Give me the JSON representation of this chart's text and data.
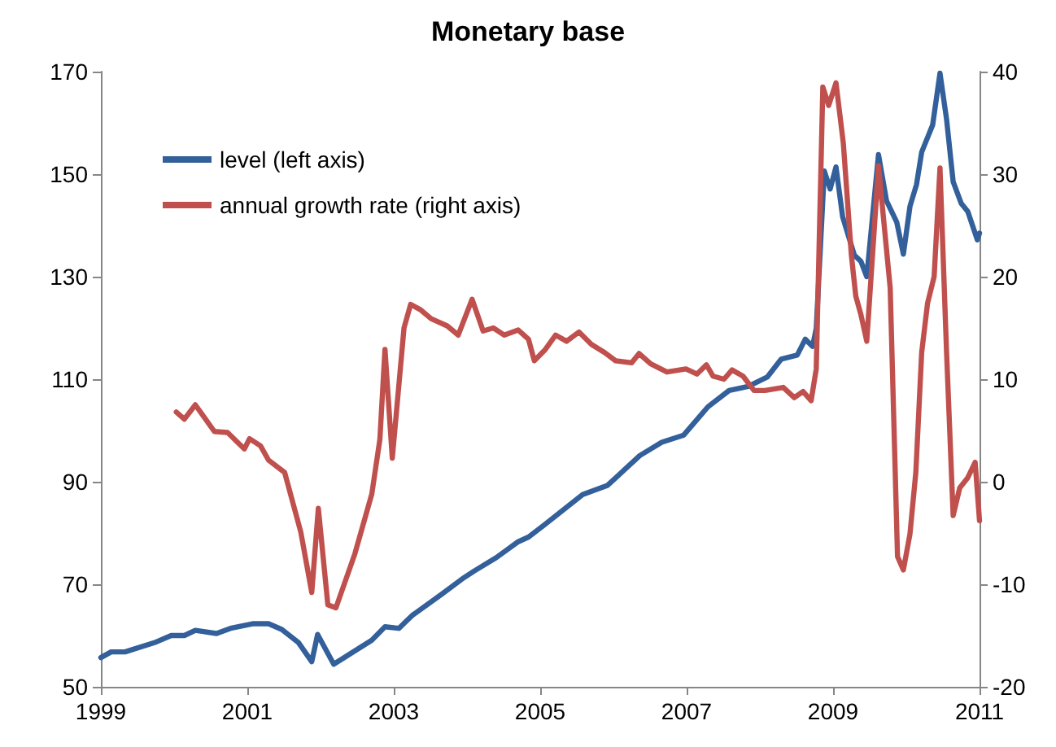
{
  "chart_data": {
    "type": "line",
    "title": "Monetary base",
    "xlim": [
      1999,
      2011
    ],
    "xticks": [
      1999,
      2001,
      2003,
      2005,
      2007,
      2009,
      2011
    ],
    "ylim": [
      50,
      170
    ],
    "yticks": [
      50,
      70,
      90,
      110,
      130,
      150,
      170
    ],
    "y2lim": [
      -20,
      40
    ],
    "y2ticks": [
      -20,
      -10,
      0,
      10,
      20,
      30,
      40
    ],
    "grid": false,
    "legend": "top left",
    "marker": "none",
    "line_style": "solid",
    "series": [
      {
        "name": "level (left axis)",
        "color": "#33609a",
        "x": [
          1999.0,
          1999.14,
          1999.33,
          1999.73,
          1999.96,
          2000.14,
          2000.29,
          2000.58,
          2000.77,
          2001.07,
          2001.29,
          2001.47,
          2001.7,
          2001.88,
          2001.96,
          2002.18,
          2002.4,
          2002.7,
          2002.88,
          2003.07,
          2003.25,
          2003.66,
          2003.96,
          2004.1,
          2004.4,
          2004.7,
          2004.84,
          2005.05,
          2005.58,
          2005.92,
          2006.36,
          2006.66,
          2006.96,
          2007.29,
          2007.58,
          2007.84,
          2008.1,
          2008.29,
          2008.51,
          2008.62,
          2008.72,
          2008.77,
          2008.88,
          2008.96,
          2009.04,
          2009.13,
          2009.29,
          2009.38,
          2009.46,
          2009.62,
          2009.73,
          2009.87,
          2009.96,
          2010.05,
          2010.14,
          2010.21,
          2010.36,
          2010.46,
          2010.55,
          2010.64,
          2010.75,
          2010.84,
          2010.97,
          2011.0
        ],
        "values": [
          55.7,
          56.8,
          56.8,
          58.6,
          60.0,
          60.0,
          61.0,
          60.4,
          61.4,
          62.3,
          62.3,
          61.2,
          58.6,
          54.9,
          60.2,
          54.4,
          56.4,
          59.1,
          61.7,
          61.4,
          63.9,
          68.1,
          71.3,
          72.6,
          75.2,
          78.3,
          79.2,
          81.5,
          87.5,
          89.3,
          95.1,
          97.7,
          99.1,
          104.6,
          107.8,
          108.6,
          110.4,
          113.9,
          114.7,
          117.8,
          116.4,
          119.9,
          150.6,
          147.1,
          151.4,
          141.7,
          134.2,
          133.0,
          130.0,
          153.8,
          144.8,
          140.6,
          134.4,
          143.7,
          148.0,
          154.3,
          159.6,
          169.7,
          160.7,
          148.5,
          144.3,
          142.7,
          137.2,
          138.5
        ]
      },
      {
        "name": "annual growth rate (right axis)",
        "color": "#c0504d",
        "axis": "y2",
        "x": [
          2000.03,
          2000.14,
          2000.29,
          2000.55,
          2000.73,
          2000.96,
          2001.03,
          2001.18,
          2001.29,
          2001.51,
          2001.73,
          2001.88,
          2001.97,
          2002.1,
          2002.21,
          2002.47,
          2002.7,
          2002.81,
          2002.88,
          2002.98,
          2003.14,
          2003.23,
          2003.36,
          2003.51,
          2003.73,
          2003.88,
          2004.07,
          2004.22,
          2004.36,
          2004.51,
          2004.7,
          2004.84,
          2004.92,
          2005.07,
          2005.21,
          2005.36,
          2005.53,
          2005.7,
          2005.88,
          2006.03,
          2006.25,
          2006.35,
          2006.51,
          2006.73,
          2006.99,
          2007.14,
          2007.27,
          2007.36,
          2007.51,
          2007.62,
          2007.77,
          2007.92,
          2008.07,
          2008.32,
          2008.47,
          2008.59,
          2008.7,
          2008.77,
          2008.86,
          2008.94,
          2009.04,
          2009.14,
          2009.25,
          2009.31,
          2009.38,
          2009.46,
          2009.62,
          2009.78,
          2009.88,
          2009.96,
          2010.05,
          2010.13,
          2010.21,
          2010.29,
          2010.38,
          2010.46,
          2010.55,
          2010.64,
          2010.73,
          2010.84,
          2010.94,
          2011.0
        ],
        "values": [
          6.8,
          6.1,
          7.5,
          4.9,
          4.8,
          3.2,
          4.2,
          3.5,
          2.1,
          0.9,
          -4.9,
          -10.8,
          -2.6,
          -12.0,
          -12.3,
          -7.0,
          -1.2,
          4.1,
          12.9,
          2.3,
          15.0,
          17.3,
          16.8,
          15.9,
          15.2,
          14.3,
          17.8,
          14.7,
          15.0,
          14.3,
          14.8,
          13.9,
          11.8,
          12.9,
          14.3,
          13.7,
          14.6,
          13.4,
          12.6,
          11.8,
          11.6,
          12.5,
          11.5,
          10.7,
          11.0,
          10.5,
          11.4,
          10.3,
          10.0,
          10.9,
          10.3,
          8.9,
          8.9,
          9.2,
          8.2,
          8.8,
          7.9,
          11.0,
          38.5,
          36.7,
          38.9,
          33.0,
          22.1,
          18.1,
          16.3,
          13.7,
          30.8,
          18.9,
          -7.3,
          -8.6,
          -5.1,
          0.9,
          12.6,
          17.4,
          20.0,
          30.6,
          12.6,
          -3.3,
          -0.6,
          0.4,
          1.9,
          -3.8
        ]
      }
    ]
  }
}
